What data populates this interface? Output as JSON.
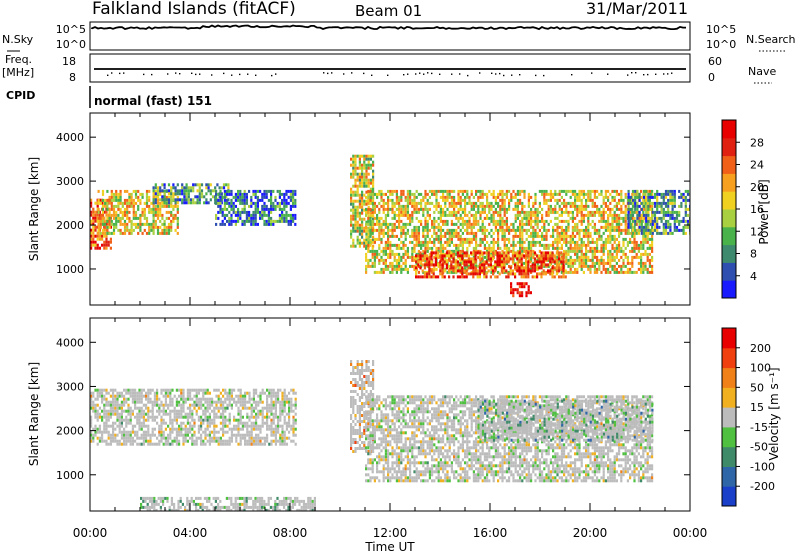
{
  "header": {
    "station": "Falkland Islands (fitACF)",
    "beam": "Beam 01",
    "date": "31/Mar/2011"
  },
  "strip_nsky": {
    "left_label": "N.Sky",
    "left_ticks": [
      "10^5",
      "10^0"
    ],
    "right_ticks": [
      "10^5",
      "10^0"
    ],
    "right_label": "N.Search"
  },
  "strip_freq": {
    "left_label_1": "Freq.",
    "left_label_2": "[MHz]",
    "left_ticks": [
      "18",
      "8"
    ],
    "right_ticks": [
      "60",
      "0"
    ],
    "right_label": "Nave"
  },
  "cpid": {
    "label": "CPID",
    "text": "normal (fast) 151"
  },
  "chart_data": [
    {
      "type": "heatmap",
      "panel": "power",
      "ylabel": "Slant Range [km]",
      "yticks": [
        "1000",
        "2000",
        "3000",
        "4000"
      ],
      "ylim": [
        180,
        4550
      ],
      "xlim": [
        0,
        24
      ],
      "colorbar": {
        "label": "Power [dB]",
        "ticks": [
          "4",
          "8",
          "12",
          "16",
          "20",
          "24",
          "28"
        ],
        "colors": [
          "#1a1aff",
          "#2e4fb0",
          "#3d8a6e",
          "#49b24a",
          "#a8d040",
          "#f0d020",
          "#f7a020",
          "#f06018",
          "#e02010",
          "#e80000"
        ],
        "range": [
          0,
          32
        ]
      },
      "regions": [
        {
          "t0": 0.0,
          "t1": 0.8,
          "r0": 1500,
          "r1": 2600,
          "level": 0.75
        },
        {
          "t0": 0.3,
          "t1": 3.5,
          "r0": 1800,
          "r1": 2800,
          "level": 0.55
        },
        {
          "t0": 2.5,
          "t1": 5.5,
          "r0": 2500,
          "r1": 2950,
          "level": 0.3
        },
        {
          "t0": 5.0,
          "t1": 8.2,
          "r0": 2000,
          "r1": 2800,
          "level": 0.2
        },
        {
          "t0": 10.4,
          "t1": 11.3,
          "r0": 1500,
          "r1": 3600,
          "level": 0.5
        },
        {
          "t0": 11.0,
          "t1": 22.5,
          "r0": 900,
          "r1": 2800,
          "level": 0.55
        },
        {
          "t0": 13.0,
          "t1": 19.0,
          "r0": 800,
          "r1": 1400,
          "level": 0.8
        },
        {
          "t0": 16.8,
          "t1": 17.6,
          "r0": 380,
          "r1": 700,
          "level": 0.95
        },
        {
          "t0": 21.5,
          "t1": 24.0,
          "r0": 1800,
          "r1": 2800,
          "level": 0.3
        }
      ]
    },
    {
      "type": "heatmap",
      "panel": "velocity",
      "ylabel": "Slant Range [km]",
      "xlabel": "Time UT",
      "yticks": [
        "1000",
        "2000",
        "3000",
        "4000"
      ],
      "xticks": [
        "00:00",
        "04:00",
        "08:00",
        "12:00",
        "16:00",
        "20:00",
        "00:00"
      ],
      "ylim": [
        180,
        4550
      ],
      "xlim": [
        0,
        24
      ],
      "colorbar": {
        "label": "Velocity [m s⁻¹]",
        "ticks": [
          "200",
          "100",
          "50",
          "15",
          "-15",
          "-50",
          "-100",
          "-200"
        ],
        "colors": [
          "#1a3fc8",
          "#2f66a8",
          "#3f8a68",
          "#4fc040",
          "#bcbcbc",
          "#f0b020",
          "#f08018",
          "#f04010",
          "#e80000"
        ],
        "range": [
          -250,
          250
        ]
      },
      "regions": [
        {
          "t0": 0.0,
          "t1": 8.2,
          "r0": 1700,
          "r1": 2950,
          "level": 0.5
        },
        {
          "t0": 10.4,
          "t1": 11.3,
          "r0": 1500,
          "r1": 3600,
          "level": 0.65
        },
        {
          "t0": 11.0,
          "t1": 22.5,
          "r0": 850,
          "r1": 2800,
          "level": 0.5
        },
        {
          "t0": 2.0,
          "t1": 9.0,
          "r0": 220,
          "r1": 500,
          "level": 0.4
        },
        {
          "t0": 15.5,
          "t1": 22.5,
          "r0": 1800,
          "r1": 2700,
          "level": 0.35
        }
      ]
    }
  ]
}
